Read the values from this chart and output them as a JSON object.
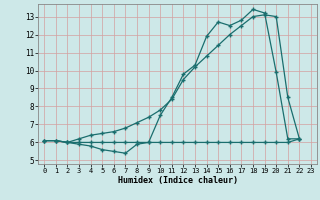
{
  "title": "",
  "xlabel": "Humidex (Indice chaleur)",
  "bg_color": "#cde8e8",
  "grid_color": "#b0d4d4",
  "line_color": "#1a6e6e",
  "xlim": [
    -0.5,
    23.5
  ],
  "ylim": [
    4.8,
    13.7
  ],
  "yticks": [
    5,
    6,
    7,
    8,
    9,
    10,
    11,
    12,
    13
  ],
  "xticks": [
    0,
    1,
    2,
    3,
    4,
    5,
    6,
    7,
    8,
    9,
    10,
    11,
    12,
    13,
    14,
    15,
    16,
    17,
    18,
    19,
    20,
    21,
    22,
    23
  ],
  "series": [
    {
      "x": [
        0,
        1,
        2,
        3,
        4,
        5,
        6,
        7,
        8,
        9,
        10,
        11,
        12,
        13,
        14,
        15,
        16,
        17,
        18,
        19,
        20,
        21,
        22
      ],
      "y": [
        6.1,
        6.1,
        6.0,
        5.9,
        5.8,
        5.6,
        5.5,
        5.4,
        5.9,
        6.0,
        7.5,
        8.5,
        9.8,
        10.3,
        11.9,
        12.7,
        12.5,
        12.8,
        13.4,
        13.2,
        9.9,
        6.2,
        6.2
      ]
    },
    {
      "x": [
        0,
        1,
        2,
        3,
        4,
        5,
        6,
        7,
        8,
        9,
        10,
        11,
        12,
        13,
        14,
        15,
        16,
        17,
        18,
        19,
        20,
        21,
        22
      ],
      "y": [
        6.1,
        6.1,
        6.0,
        6.2,
        6.4,
        6.5,
        6.6,
        6.8,
        7.1,
        7.4,
        7.8,
        8.4,
        9.5,
        10.2,
        10.8,
        11.4,
        12.0,
        12.5,
        13.0,
        13.1,
        13.0,
        8.5,
        6.2
      ]
    },
    {
      "x": [
        0,
        1,
        2,
        3,
        4,
        5,
        6,
        7,
        8,
        9,
        10,
        11,
        12,
        13,
        14,
        15,
        16,
        17,
        18,
        19,
        20,
        21,
        22
      ],
      "y": [
        6.1,
        6.1,
        6.0,
        6.0,
        6.0,
        6.0,
        6.0,
        6.0,
        6.0,
        6.0,
        6.0,
        6.0,
        6.0,
        6.0,
        6.0,
        6.0,
        6.0,
        6.0,
        6.0,
        6.0,
        6.0,
        6.0,
        6.2
      ]
    }
  ]
}
